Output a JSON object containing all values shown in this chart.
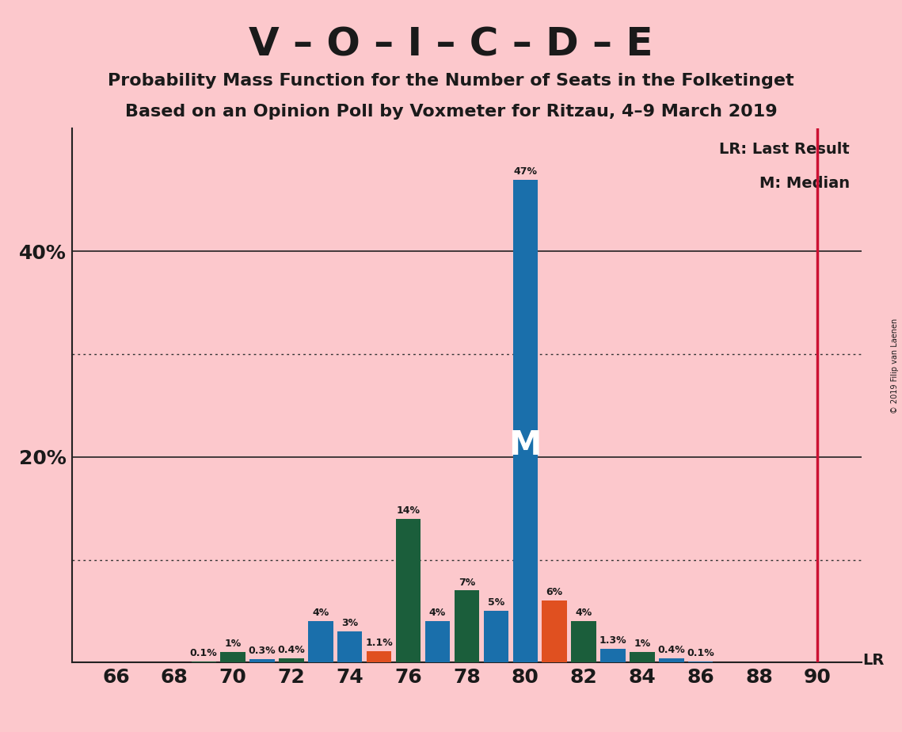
{
  "title1": "V – O – I – C – D – E",
  "title2": "Probability Mass Function for the Number of Seats in the Folketinget",
  "title3": "Based on an Opinion Poll by Voxmeter for Ritzau, 4–9 March 2019",
  "copyright": "© 2019 Filip van Laenen",
  "background_color": "#fcc8cc",
  "bar_color_blue": "#1a6fab",
  "bar_color_darkgreen": "#1b5e3b",
  "bar_color_orange": "#e05020",
  "lr_line_color": "#cc1133",
  "seats": [
    66,
    67,
    68,
    69,
    70,
    71,
    72,
    73,
    74,
    75,
    76,
    77,
    78,
    79,
    80,
    81,
    82,
    83,
    84,
    85,
    86,
    87,
    88,
    89,
    90
  ],
  "probabilities": [
    0.0,
    0.0,
    0.0,
    0.1,
    1.0,
    0.3,
    0.4,
    4.0,
    3.0,
    1.1,
    14.0,
    4.0,
    7.0,
    5.0,
    47.0,
    6.0,
    4.0,
    1.3,
    1.0,
    0.4,
    0.1,
    0.0,
    0.0,
    0.0,
    0.0
  ],
  "bar_colors": [
    "#1a6fab",
    "#1a6fab",
    "#1a6fab",
    "#1b5e3b",
    "#1b5e3b",
    "#1a6fab",
    "#1b5e3b",
    "#1a6fab",
    "#1a6fab",
    "#e05020",
    "#1b5e3b",
    "#1a6fab",
    "#1b5e3b",
    "#1a6fab",
    "#1a6fab",
    "#e05020",
    "#1b5e3b",
    "#1a6fab",
    "#1b5e3b",
    "#1a6fab",
    "#1a6fab",
    "#1a6fab",
    "#1a6fab",
    "#1a6fab",
    "#1a6fab"
  ],
  "median_seat": 80,
  "lr_seat": 90,
  "xticks": [
    66,
    68,
    70,
    72,
    74,
    76,
    78,
    80,
    82,
    84,
    86,
    88,
    90
  ],
  "dotted_gridlines": [
    10,
    30
  ],
  "solid_gridlines": [
    20,
    40
  ],
  "ylim_max": 52,
  "bar_width": 0.85,
  "label_fontsize": 9,
  "tick_fontsize": 18,
  "legend_fontsize": 14,
  "title1_fontsize": 36,
  "title23_fontsize": 16,
  "M_fontsize": 30,
  "LR_fontsize": 14
}
